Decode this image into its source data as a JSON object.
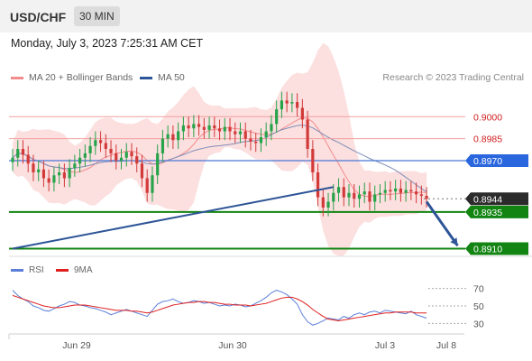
{
  "header": {
    "symbol": "USD/CHF",
    "timeframe": "30 MIN",
    "datetime": "Monday, July 3, 2023 7:25:31 AM CET",
    "credit": "Research © 2023 Trading Central"
  },
  "legend": [
    {
      "label": "MA 20 + Bollinger Bands",
      "color": "#f28c8c"
    },
    {
      "label": "MA 50",
      "color": "#2e5597"
    }
  ],
  "rsi_legend": [
    {
      "label": "RSI",
      "color": "#5b7fd6"
    },
    {
      "label": "9MA",
      "color": "#e02020"
    }
  ],
  "chart_data": [
    {
      "type": "candlestick",
      "price_range": [
        0.8906,
        0.9018
      ],
      "x_labels": [
        "Jun 29",
        "Jun 30",
        "Jul 3",
        "Jul 8"
      ],
      "levels": [
        {
          "label": "0.9000",
          "value": 0.9,
          "style": "resistance-light"
        },
        {
          "label": "0.8985",
          "value": 0.8985,
          "style": "resistance-light"
        },
        {
          "label": "0.8970",
          "value": 0.897,
          "style": "pivot-blue"
        },
        {
          "label": "0.8944",
          "value": 0.8944,
          "style": "last-price"
        },
        {
          "label": "0.8935",
          "value": 0.8935,
          "style": "support-green"
        },
        {
          "label": "0.8910",
          "value": 0.891,
          "style": "support-green"
        }
      ],
      "close_series": [
        0.8972,
        0.8978,
        0.8974,
        0.8968,
        0.8962,
        0.8964,
        0.8958,
        0.8955,
        0.896,
        0.8962,
        0.8958,
        0.8965,
        0.8968,
        0.8972,
        0.8975,
        0.898,
        0.8984,
        0.8982,
        0.8978,
        0.8975,
        0.897,
        0.8972,
        0.8976,
        0.8973,
        0.8968,
        0.8958,
        0.8948,
        0.896,
        0.8975,
        0.8985,
        0.8988,
        0.8984,
        0.899,
        0.8994,
        0.8992,
        0.8995,
        0.8993,
        0.8991,
        0.8994,
        0.8992,
        0.899,
        0.8993,
        0.899,
        0.8988,
        0.899,
        0.8985,
        0.8983,
        0.8982,
        0.8986,
        0.899,
        0.8995,
        0.9005,
        0.9011,
        0.9009,
        0.901,
        0.9006,
        0.8998,
        0.8978,
        0.8962,
        0.8945,
        0.8938,
        0.8942,
        0.8948,
        0.8952,
        0.8945,
        0.8948,
        0.8944,
        0.8947,
        0.8949,
        0.8942,
        0.8947,
        0.8948,
        0.895,
        0.8949,
        0.8951,
        0.8948,
        0.895,
        0.8949,
        0.8947,
        0.8946,
        0.8944
      ],
      "trendlines": [
        {
          "name": "rising-trendline",
          "from": [
            0,
            0.891
          ],
          "to": [
            62,
            0.8952
          ]
        },
        {
          "name": "projection-arrow",
          "from": [
            80,
            0.8942
          ],
          "to": [
            86,
            0.8912
          ]
        }
      ]
    },
    {
      "type": "line",
      "name": "RSI panel",
      "y_ticks": [
        "70",
        "50",
        "30"
      ],
      "ylim": [
        20,
        80
      ],
      "series": [
        {
          "name": "RSI",
          "values": [
            68,
            62,
            58,
            55,
            50,
            48,
            45,
            44,
            47,
            50,
            52,
            55,
            54,
            51,
            50,
            48,
            47,
            45,
            43,
            40,
            42,
            44,
            46,
            44,
            42,
            40,
            38,
            45,
            52,
            55,
            56,
            58,
            55,
            53,
            54,
            56,
            55,
            53,
            54,
            52,
            50,
            51,
            50,
            52,
            51,
            49,
            50,
            53,
            56,
            60,
            65,
            68,
            66,
            63,
            58,
            52,
            40,
            32,
            28,
            30,
            33,
            36,
            35,
            34,
            38,
            36,
            40,
            42,
            40,
            43,
            44,
            42,
            45,
            44,
            43,
            42,
            41,
            44,
            40,
            38,
            36
          ]
        },
        {
          "name": "9MA",
          "values": [
            62,
            60,
            58,
            56,
            54,
            52,
            50,
            49,
            48,
            48,
            49,
            50,
            51,
            51,
            51,
            50,
            49,
            48,
            47,
            46,
            45,
            45,
            45,
            44,
            44,
            43,
            42,
            43,
            45,
            47,
            49,
            51,
            52,
            53,
            54,
            54,
            55,
            55,
            54,
            54,
            53,
            52,
            52,
            51,
            51,
            51,
            50,
            51,
            52,
            53,
            55,
            57,
            59,
            60,
            60,
            58,
            55,
            51,
            46,
            42,
            38,
            35,
            34,
            33,
            34,
            35,
            36,
            37,
            38,
            39,
            40,
            41,
            42,
            42,
            43,
            43,
            43,
            43,
            42,
            42,
            42
          ]
        }
      ]
    }
  ]
}
